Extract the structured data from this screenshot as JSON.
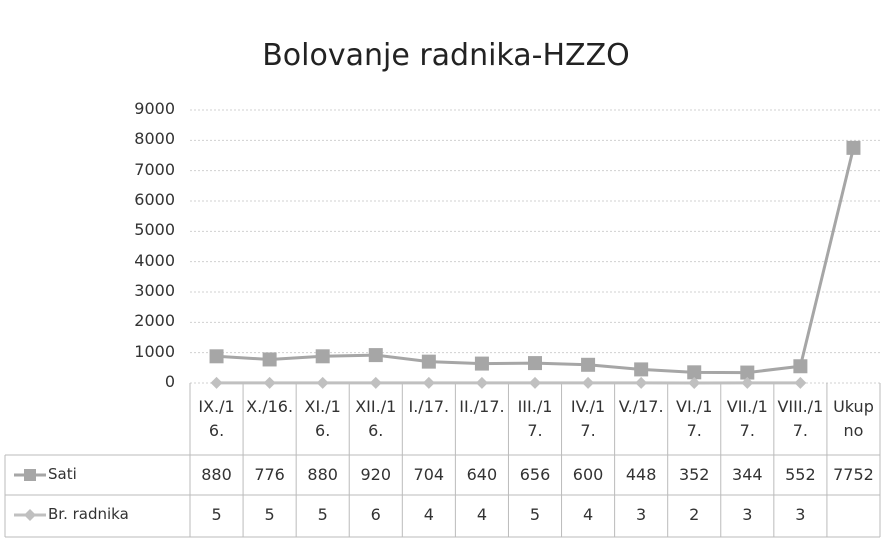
{
  "chart_data": {
    "type": "line",
    "title": "Bolovanje radnika-HZZO",
    "categories": [
      "IX./16.",
      "X./16.",
      "XI./16.",
      "XII./16.",
      "I./17.",
      "II./17.",
      "III./17.",
      "IV./17.",
      "V./17.",
      "VI./17.",
      "VII./17.",
      "VIII./17.",
      "Ukupno"
    ],
    "series": [
      {
        "name": "Sati",
        "color": "#a6a6a6",
        "values": [
          880,
          776,
          880,
          920,
          704,
          640,
          656,
          600,
          448,
          352,
          344,
          552,
          7752
        ]
      },
      {
        "name": "Br. radnika",
        "color": "#c0c0c0",
        "values": [
          5,
          5,
          5,
          6,
          4,
          4,
          5,
          4,
          3,
          2,
          3,
          3,
          null
        ]
      }
    ],
    "ylim": [
      0,
      9000
    ],
    "yticks": [
      0,
      1000,
      2000,
      3000,
      4000,
      5000,
      6000,
      7000,
      8000,
      9000
    ],
    "grid": true
  }
}
